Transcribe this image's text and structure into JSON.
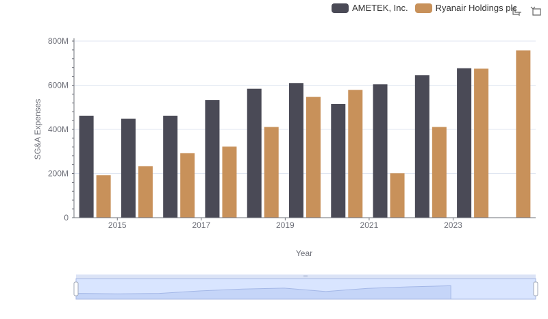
{
  "legend": {
    "items": [
      {
        "label": "AMETEK, Inc.",
        "color": "#4a4a56"
      },
      {
        "label": "Ryanair Holdings plc",
        "color": "#c8915a"
      }
    ]
  },
  "toolbox": {
    "zoom_icon": "zoom-select-icon",
    "restore_icon": "restore-icon"
  },
  "chart_data": {
    "type": "bar",
    "xlabel": "Year",
    "ylabel": "SG&A Expenses",
    "ylim": [
      0,
      800000000
    ],
    "y_ticks": [
      "0",
      "200M",
      "400M",
      "600M",
      "800M"
    ],
    "categories": [
      "2014",
      "2015",
      "2016",
      "2017",
      "2018",
      "2019",
      "2020",
      "2021",
      "2022",
      "2023",
      "2024"
    ],
    "x_tick_labels": [
      "2015",
      "2017",
      "2019",
      "2021",
      "2023"
    ],
    "grid": true,
    "legend_position": "top-right",
    "series": [
      {
        "name": "AMETEK, Inc.",
        "color": "#4a4a56",
        "values": [
          462000000,
          448000000,
          462000000,
          533000000,
          584000000,
          610000000,
          515000000,
          604000000,
          645000000,
          677000000,
          null
        ]
      },
      {
        "name": "Ryanair Holdings plc",
        "color": "#c8915a",
        "values": [
          192000000,
          233000000,
          292000000,
          322000000,
          411000000,
          547000000,
          579000000,
          201000000,
          411000000,
          675000000,
          758000000
        ]
      }
    ],
    "data_zoom": {
      "start_percent": 0,
      "end_percent": 100
    }
  }
}
